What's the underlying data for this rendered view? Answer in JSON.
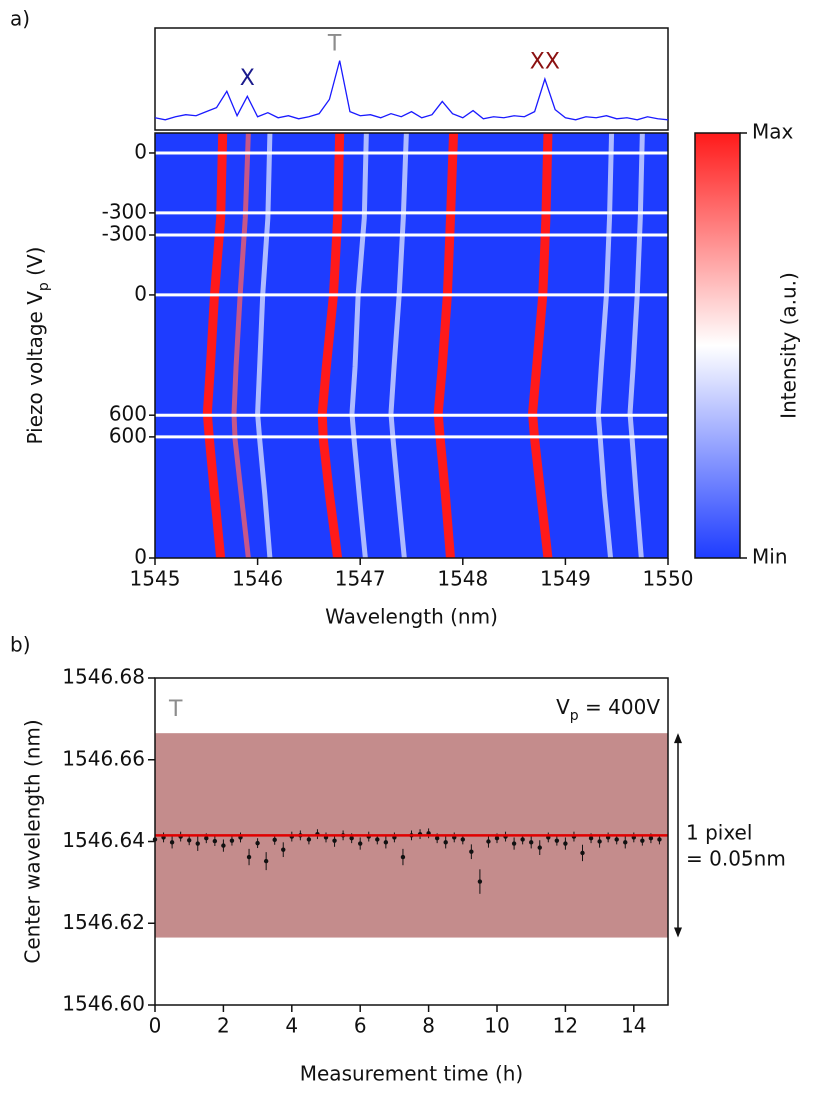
{
  "chart_data": [
    {
      "type": "line",
      "panel_label": "a)",
      "x": [
        1545.0,
        1545.1,
        1545.2,
        1545.3,
        1545.4,
        1545.5,
        1545.6,
        1545.7,
        1545.8,
        1545.9,
        1546.0,
        1546.1,
        1546.2,
        1546.3,
        1546.4,
        1546.5,
        1546.6,
        1546.7,
        1546.8,
        1546.9,
        1547.0,
        1547.1,
        1547.2,
        1547.3,
        1547.4,
        1547.5,
        1547.6,
        1547.7,
        1547.8,
        1547.9,
        1548.0,
        1548.1,
        1548.2,
        1548.3,
        1548.4,
        1548.5,
        1548.6,
        1548.7,
        1548.8,
        1548.9,
        1549.0,
        1549.1,
        1549.2,
        1549.3,
        1549.4,
        1549.5,
        1549.6,
        1549.7,
        1549.8,
        1549.9,
        1550.0
      ],
      "values": [
        0.12,
        0.1,
        0.13,
        0.15,
        0.14,
        0.18,
        0.22,
        0.38,
        0.14,
        0.33,
        0.13,
        0.17,
        0.12,
        0.14,
        0.11,
        0.13,
        0.16,
        0.3,
        0.68,
        0.18,
        0.14,
        0.15,
        0.12,
        0.16,
        0.13,
        0.18,
        0.12,
        0.15,
        0.28,
        0.16,
        0.12,
        0.19,
        0.11,
        0.13,
        0.12,
        0.14,
        0.13,
        0.18,
        0.5,
        0.2,
        0.12,
        0.1,
        0.13,
        0.12,
        0.14,
        0.11,
        0.12,
        0.1,
        0.13,
        0.11,
        0.1
      ],
      "color": "#1a1aff",
      "xlim": [
        1545,
        1550
      ],
      "ylim": [
        0,
        1
      ],
      "annotations": [
        {
          "text": "X",
          "x": 1545.9,
          "y": 0.5,
          "color": "#1a1a8c"
        },
        {
          "text": "T",
          "x": 1546.75,
          "y": 0.84,
          "color": "#8c8c8c"
        },
        {
          "text": "XX",
          "x": 1548.8,
          "y": 0.66,
          "color": "#8b1010"
        }
      ]
    },
    {
      "type": "heatmap",
      "xlabel": "Wavelength (nm)",
      "ylabel": [
        "Piezo voltage V",
        "p",
        " (V)"
      ],
      "xlim": [
        1545,
        1550
      ],
      "xticks": [
        1545,
        1546,
        1547,
        1548,
        1549,
        1550
      ],
      "ylim": [
        0,
        100
      ],
      "yinvert": true,
      "background": "#1e3cff",
      "markers": [
        {
          "row": 4.7,
          "label": "0"
        },
        {
          "row": 18.8,
          "label": "-300"
        },
        {
          "row": 24.0,
          "label": "-300"
        },
        {
          "row": 38.1,
          "label": "0"
        },
        {
          "row": 66.4,
          "label": "600"
        },
        {
          "row": 71.5,
          "label": "600"
        },
        {
          "row": 100,
          "label": "0"
        }
      ],
      "traces": [
        {
          "color": "#ff1a1a",
          "rows": [
            0,
            20,
            38,
            55,
            66,
            72,
            85,
            100
          ],
          "wavelengths": [
            1545.66,
            1545.64,
            1545.58,
            1545.54,
            1545.51,
            1545.53,
            1545.58,
            1545.64
          ]
        },
        {
          "color": "#ff6060",
          "rows": [
            0,
            20,
            38,
            55,
            66,
            72,
            85,
            100
          ],
          "wavelengths": [
            1545.91,
            1545.88,
            1545.83,
            1545.79,
            1545.77,
            1545.78,
            1545.84,
            1545.91
          ]
        },
        {
          "color": "#ff1a1a",
          "rows": [
            0,
            20,
            38,
            55,
            66,
            72,
            85,
            100
          ],
          "wavelengths": [
            1546.8,
            1546.78,
            1546.74,
            1546.67,
            1546.63,
            1546.64,
            1546.7,
            1546.78
          ]
        },
        {
          "color": "#ff1a1a",
          "rows": [
            0,
            20,
            38,
            55,
            66,
            72,
            85,
            100
          ],
          "wavelengths": [
            1547.91,
            1547.88,
            1547.85,
            1547.8,
            1547.76,
            1547.78,
            1547.83,
            1547.88
          ]
        },
        {
          "color": "#ff1a1a",
          "rows": [
            0,
            20,
            38,
            55,
            66,
            72,
            85,
            100
          ],
          "wavelengths": [
            1548.83,
            1548.81,
            1548.78,
            1548.72,
            1548.68,
            1548.7,
            1548.76,
            1548.83
          ]
        },
        {
          "color": "#dfe6ff",
          "rows": [
            0,
            20,
            38,
            55,
            66,
            72,
            85,
            100
          ],
          "wavelengths": [
            1546.12,
            1546.1,
            1546.05,
            1546.02,
            1546.0,
            1546.02,
            1546.07,
            1546.12
          ]
        },
        {
          "color": "#dfe6ff",
          "rows": [
            0,
            20,
            38,
            55,
            66,
            72,
            85,
            100
          ],
          "wavelengths": [
            1547.06,
            1547.04,
            1546.98,
            1546.95,
            1546.92,
            1546.94,
            1546.99,
            1547.05
          ]
        },
        {
          "color": "#dfe6ff",
          "rows": [
            0,
            20,
            38,
            55,
            66,
            72,
            85,
            100
          ],
          "wavelengths": [
            1547.45,
            1547.42,
            1547.38,
            1547.33,
            1547.3,
            1547.32,
            1547.37,
            1547.43
          ]
        },
        {
          "color": "#dfe6ff",
          "rows": [
            0,
            20,
            38,
            55,
            66,
            72,
            85,
            100
          ],
          "wavelengths": [
            1549.45,
            1549.43,
            1549.4,
            1549.35,
            1549.32,
            1549.34,
            1549.38,
            1549.44
          ]
        },
        {
          "color": "#dfe6ff",
          "rows": [
            0,
            20,
            38,
            55,
            66,
            72,
            85,
            100
          ],
          "wavelengths": [
            1549.75,
            1549.73,
            1549.7,
            1549.66,
            1549.63,
            1549.65,
            1549.69,
            1549.74
          ]
        }
      ],
      "colorbar": {
        "colors": [
          "#1e3cff",
          "#ffffff",
          "#ff1a1a"
        ],
        "max": "Max",
        "min": "Min",
        "label": "Intensity (a.u.)"
      }
    },
    {
      "type": "scatter",
      "panel_label": "b)",
      "xlabel": "Measurement time (h)",
      "ylabel": "Center wavelength (nm)",
      "xlim": [
        0,
        15
      ],
      "xticks": [
        0,
        2,
        4,
        6,
        8,
        10,
        12,
        14
      ],
      "ylim": [
        1546.6,
        1546.68
      ],
      "yticks": [
        {
          "value": 1546.6,
          "label": "1546.60"
        },
        1546.62,
        1546.64,
        1546.66,
        1546.68
      ],
      "x": [
        0,
        0.25,
        0.5,
        0.75,
        1,
        1.25,
        1.5,
        1.75,
        2,
        2.25,
        2.5,
        2.75,
        3,
        3.25,
        3.5,
        3.75,
        4,
        4.25,
        4.5,
        4.75,
        5,
        5.25,
        5.5,
        5.75,
        6,
        6.25,
        6.5,
        6.75,
        7,
        7.25,
        7.5,
        7.75,
        8,
        8.25,
        8.5,
        8.75,
        9,
        9.25,
        9.5,
        9.75,
        10,
        10.25,
        10.5,
        10.75,
        11,
        11.25,
        11.5,
        11.75,
        12,
        12.25,
        12.5,
        12.75,
        13,
        13.25,
        13.5,
        13.75,
        14,
        14.25,
        14.5,
        14.75
      ],
      "values": [
        1546.6405,
        1546.641,
        1546.6398,
        1546.6412,
        1546.6403,
        1546.6395,
        1546.6408,
        1546.6401,
        1546.639,
        1546.6402,
        1546.641,
        1546.6362,
        1546.6396,
        1546.6352,
        1546.6404,
        1546.638,
        1546.6412,
        1546.6415,
        1546.6405,
        1546.6418,
        1546.641,
        1546.6402,
        1546.6415,
        1546.6408,
        1546.6395,
        1546.6412,
        1546.6405,
        1546.6398,
        1546.641,
        1546.6362,
        1546.6415,
        1546.6418,
        1546.642,
        1546.6408,
        1546.6398,
        1546.641,
        1546.6405,
        1546.6375,
        1546.6302,
        1546.64,
        1546.6408,
        1546.6412,
        1546.6395,
        1546.6405,
        1546.6398,
        1546.6385,
        1546.641,
        1546.6402,
        1546.6395,
        1546.6412,
        1546.6372,
        1546.6408,
        1546.64,
        1546.641,
        1546.6405,
        1546.6398,
        1546.641,
        1546.6402,
        1546.6408,
        1546.6405
      ],
      "errors": [
        0.0012,
        0.0012,
        0.0015,
        0.0012,
        0.0012,
        0.0018,
        0.0012,
        0.0012,
        0.0015,
        0.0012,
        0.0012,
        0.002,
        0.0012,
        0.0022,
        0.0012,
        0.0018,
        0.0012,
        0.0012,
        0.0012,
        0.0012,
        0.0012,
        0.0015,
        0.0012,
        0.0012,
        0.0015,
        0.0012,
        0.0012,
        0.0015,
        0.0012,
        0.002,
        0.0012,
        0.0012,
        0.0012,
        0.0012,
        0.0015,
        0.0012,
        0.0012,
        0.0018,
        0.003,
        0.0015,
        0.0012,
        0.0012,
        0.0015,
        0.0012,
        0.0015,
        0.0018,
        0.0012,
        0.0012,
        0.0015,
        0.0012,
        0.002,
        0.0012,
        0.0015,
        0.0012,
        0.0012,
        0.0015,
        0.0012,
        0.0012,
        0.0012,
        0.0012
      ],
      "color": "#111111",
      "band": [
        1546.6165,
        1546.6665
      ],
      "band_color": "#c48c8c",
      "fit": 1546.6415,
      "fit_color": "#e00000",
      "label_t": "T",
      "label_vp": [
        "V",
        "p",
        " = 400V"
      ],
      "arrow_text": [
        "1 pixel",
        "= 0.05nm"
      ]
    }
  ]
}
